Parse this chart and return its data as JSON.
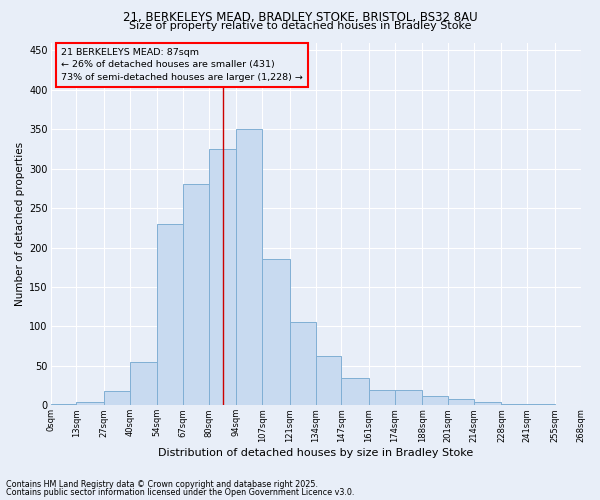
{
  "title1": "21, BERKELEYS MEAD, BRADLEY STOKE, BRISTOL, BS32 8AU",
  "title2": "Size of property relative to detached houses in Bradley Stoke",
  "xlabel": "Distribution of detached houses by size in Bradley Stoke",
  "ylabel": "Number of detached properties",
  "footnote1": "Contains HM Land Registry data © Crown copyright and database right 2025.",
  "footnote2": "Contains public sector information licensed under the Open Government Licence v3.0.",
  "annotation_title": "21 BERKELEYS MEAD: 87sqm",
  "annotation_line1": "← 26% of detached houses are smaller (431)",
  "annotation_line2": "73% of semi-detached houses are larger (1,228) →",
  "property_size": 87,
  "bin_edges": [
    0,
    13,
    27,
    40,
    54,
    67,
    80,
    94,
    107,
    121,
    134,
    147,
    161,
    174,
    188,
    201,
    214,
    228,
    241,
    255,
    268
  ],
  "bar_heights": [
    2,
    4,
    18,
    55,
    230,
    280,
    325,
    350,
    185,
    105,
    62,
    35,
    20,
    20,
    12,
    8,
    4,
    2,
    2,
    1
  ],
  "bar_color": "#c8daf0",
  "bar_edge_color": "#80afd4",
  "vline_color": "#cc0000",
  "background_color": "#e8eef8",
  "grid_color": "#ffffff",
  "ylim": [
    0,
    460
  ],
  "yticks": [
    0,
    50,
    100,
    150,
    200,
    250,
    300,
    350,
    400,
    450
  ],
  "figwidth": 6.0,
  "figheight": 5.0,
  "dpi": 100
}
